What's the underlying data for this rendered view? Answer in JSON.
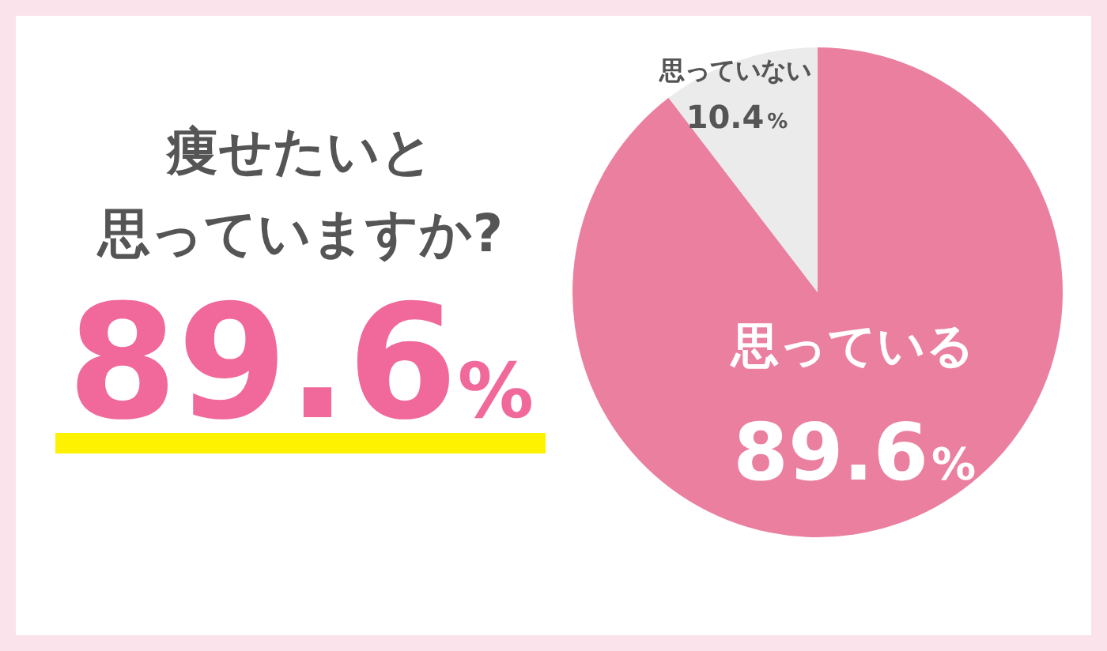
{
  "chart_data": {
    "type": "pie",
    "title": "痩せたいと",
    "subtitle": "思っていますか?",
    "categories": [
      "思っている",
      "思っていない"
    ],
    "values": [
      89.6,
      10.4
    ],
    "colors": [
      "#eb7fa0",
      "#ebebeb"
    ],
    "value_labels": [
      "89.6%",
      "10.4%"
    ],
    "annotations": [
      "89.6%"
    ],
    "legend": false
  }
}
